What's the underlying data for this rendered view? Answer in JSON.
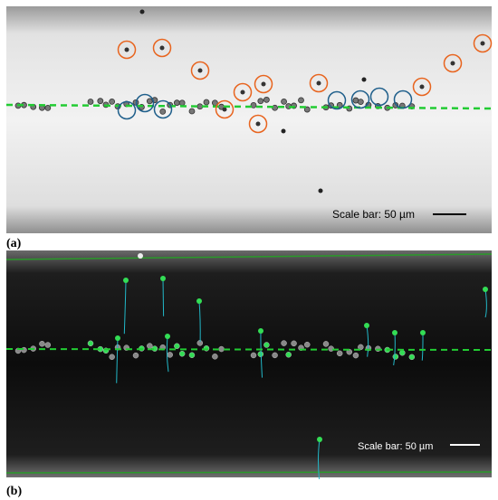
{
  "panels": [
    {
      "label": "(a)",
      "scale_bar": "Scale bar: 50 µm"
    },
    {
      "label": "(b)",
      "scale_bar": "Scale bar: 50 µm"
    }
  ]
}
